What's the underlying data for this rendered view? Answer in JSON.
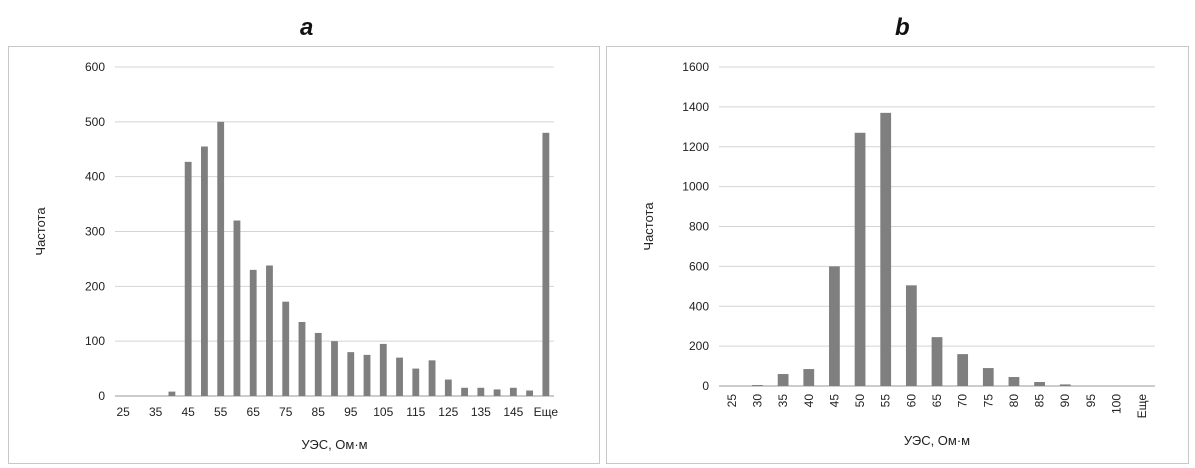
{
  "chart_data": [
    {
      "type": "bar",
      "title": "a",
      "xlabel": "УЭС, Ом·м",
      "ylabel": "Частота",
      "ylim": [
        0,
        600
      ],
      "yticks": [
        0,
        100,
        200,
        300,
        400,
        500,
        600
      ],
      "grid": true,
      "color": "#7f7f7f",
      "categories": [
        "25",
        "30",
        "35",
        "40",
        "45",
        "50",
        "55",
        "60",
        "65",
        "70",
        "75",
        "80",
        "85",
        "90",
        "95",
        "100",
        "105",
        "110",
        "115",
        "120",
        "125",
        "130",
        "135",
        "140",
        "145",
        "150",
        "Еще"
      ],
      "category_labels_shown": [
        "25",
        "35",
        "45",
        "55",
        "65",
        "75",
        "85",
        "95",
        "105",
        "115",
        "125",
        "135",
        "145",
        "Еще"
      ],
      "values": [
        0,
        0,
        0,
        8,
        427,
        455,
        500,
        320,
        230,
        238,
        172,
        135,
        115,
        100,
        80,
        75,
        95,
        70,
        50,
        65,
        30,
        15,
        15,
        12,
        15,
        10,
        480
      ]
    },
    {
      "type": "bar",
      "title": "b",
      "xlabel": "УЭС, Ом·м",
      "ylabel": "Частота",
      "ylim": [
        0,
        1600
      ],
      "yticks": [
        0,
        200,
        400,
        600,
        800,
        1000,
        1200,
        1400,
        1600
      ],
      "grid": true,
      "color": "#7f7f7f",
      "categories": [
        "25",
        "30",
        "35",
        "40",
        "45",
        "50",
        "55",
        "60",
        "65",
        "70",
        "75",
        "80",
        "85",
        "90",
        "95",
        "100",
        "Еще"
      ],
      "values": [
        0,
        5,
        60,
        85,
        600,
        1270,
        1370,
        505,
        245,
        160,
        90,
        45,
        20,
        8,
        0,
        0,
        0
      ]
    }
  ]
}
